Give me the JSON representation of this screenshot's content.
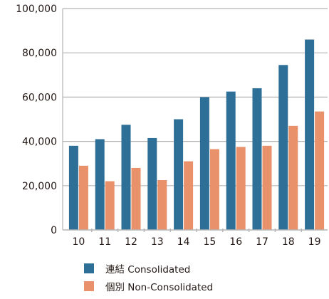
{
  "chart_data": {
    "type": "bar",
    "categories": [
      "10",
      "11",
      "12",
      "13",
      "14",
      "15",
      "16",
      "17",
      "18",
      "19"
    ],
    "series": [
      {
        "name": "連結 Consolidated",
        "color": "#2e6f97",
        "values": [
          38000,
          41000,
          47500,
          41500,
          50000,
          60000,
          62500,
          64000,
          74500,
          86000
        ]
      },
      {
        "name": "個別 Non-Consolidated",
        "color": "#e8916a",
        "values": [
          29000,
          22000,
          28000,
          22500,
          31000,
          36500,
          37500,
          38000,
          47000,
          53500
        ]
      }
    ],
    "ylim": [
      0,
      100000
    ],
    "yticks": [
      "0",
      "20,000",
      "40,000",
      "60,000",
      "80,000",
      "100,000"
    ],
    "ytick_values": [
      0,
      20000,
      40000,
      60000,
      80000,
      100000
    ],
    "grid": true,
    "legend_position": "bottom",
    "title": "",
    "xlabel": "",
    "ylabel": ""
  }
}
